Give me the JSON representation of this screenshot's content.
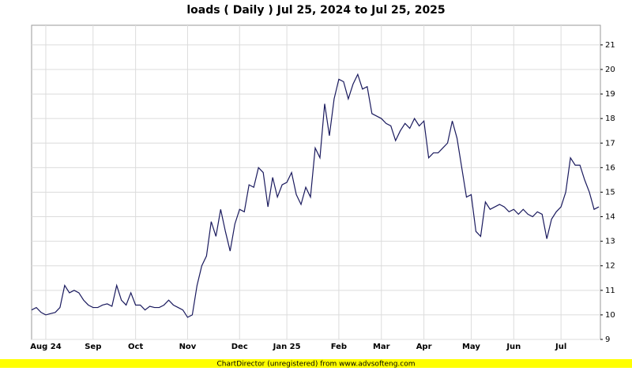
{
  "chart_data": {
    "type": "line",
    "title": "loads ( Daily ) Jul 25, 2024 to Jul 25, 2025",
    "footer": "ChartDirector (unregistered) from www.advsofteng.com",
    "categories": [
      null,
      null,
      null,
      "Aug 24",
      null,
      null,
      null,
      null,
      null,
      null,
      null,
      null,
      null,
      "Sep",
      null,
      null,
      null,
      null,
      null,
      null,
      null,
      null,
      "Oct",
      null,
      null,
      null,
      null,
      null,
      null,
      null,
      null,
      null,
      null,
      "Nov",
      null,
      null,
      null,
      null,
      null,
      null,
      null,
      null,
      null,
      null,
      "Dec",
      null,
      null,
      null,
      null,
      null,
      null,
      null,
      null,
      null,
      "Jan 25",
      null,
      null,
      null,
      null,
      null,
      null,
      null,
      null,
      null,
      null,
      "Feb",
      null,
      null,
      null,
      null,
      null,
      null,
      null,
      null,
      "Mar",
      null,
      null,
      null,
      null,
      null,
      null,
      null,
      null,
      "Apr",
      null,
      null,
      null,
      null,
      null,
      null,
      null,
      null,
      null,
      "May",
      null,
      null,
      null,
      null,
      null,
      null,
      null,
      null,
      "Jun",
      null,
      null,
      null,
      null,
      null,
      null,
      null,
      null,
      null,
      "Jul",
      null,
      null,
      null,
      null,
      null,
      null,
      null,
      null
    ],
    "series": [
      {
        "color": "#1a1a5e",
        "values": [
          10.2,
          10.3,
          10.1,
          10.0,
          10.05,
          10.1,
          10.3,
          11.2,
          10.9,
          11.0,
          10.9,
          10.6,
          10.4,
          10.3,
          10.3,
          10.4,
          10.45,
          10.35,
          11.2,
          10.6,
          10.4,
          10.9,
          10.4,
          10.4,
          10.2,
          10.35,
          10.3,
          10.3,
          10.4,
          10.6,
          10.4,
          10.3,
          10.2,
          9.9,
          10.0,
          11.2,
          12.0,
          12.4,
          13.8,
          13.2,
          14.3,
          13.4,
          12.6,
          13.7,
          14.3,
          14.2,
          15.3,
          15.2,
          16.0,
          15.8,
          14.4,
          15.6,
          14.8,
          15.3,
          15.4,
          15.8,
          14.9,
          14.5,
          15.2,
          14.8,
          16.8,
          16.4,
          18.6,
          17.3,
          18.8,
          19.6,
          19.5,
          18.8,
          19.4,
          19.8,
          19.2,
          19.3,
          18.2,
          18.1,
          18.0,
          17.8,
          17.7,
          17.1,
          17.5,
          17.8,
          17.6,
          18.0,
          17.7,
          17.9,
          16.4,
          16.6,
          16.6,
          16.8,
          17.0,
          17.9,
          17.2,
          16.0,
          14.8,
          14.9,
          13.4,
          13.2,
          14.6,
          14.3,
          14.4,
          14.5,
          14.4,
          14.2,
          14.3,
          14.1,
          14.3,
          14.1,
          14.0,
          14.2,
          14.1,
          13.1,
          13.9,
          14.2,
          14.4,
          15.0,
          16.4,
          16.1,
          16.1,
          15.5,
          15.0,
          14.3,
          14.4
        ]
      }
    ],
    "ylim": [
      9,
      21.8
    ],
    "yticks": [
      9,
      10,
      11,
      12,
      13,
      14,
      15,
      16,
      17,
      18,
      19,
      20,
      21
    ],
    "grid": true
  }
}
